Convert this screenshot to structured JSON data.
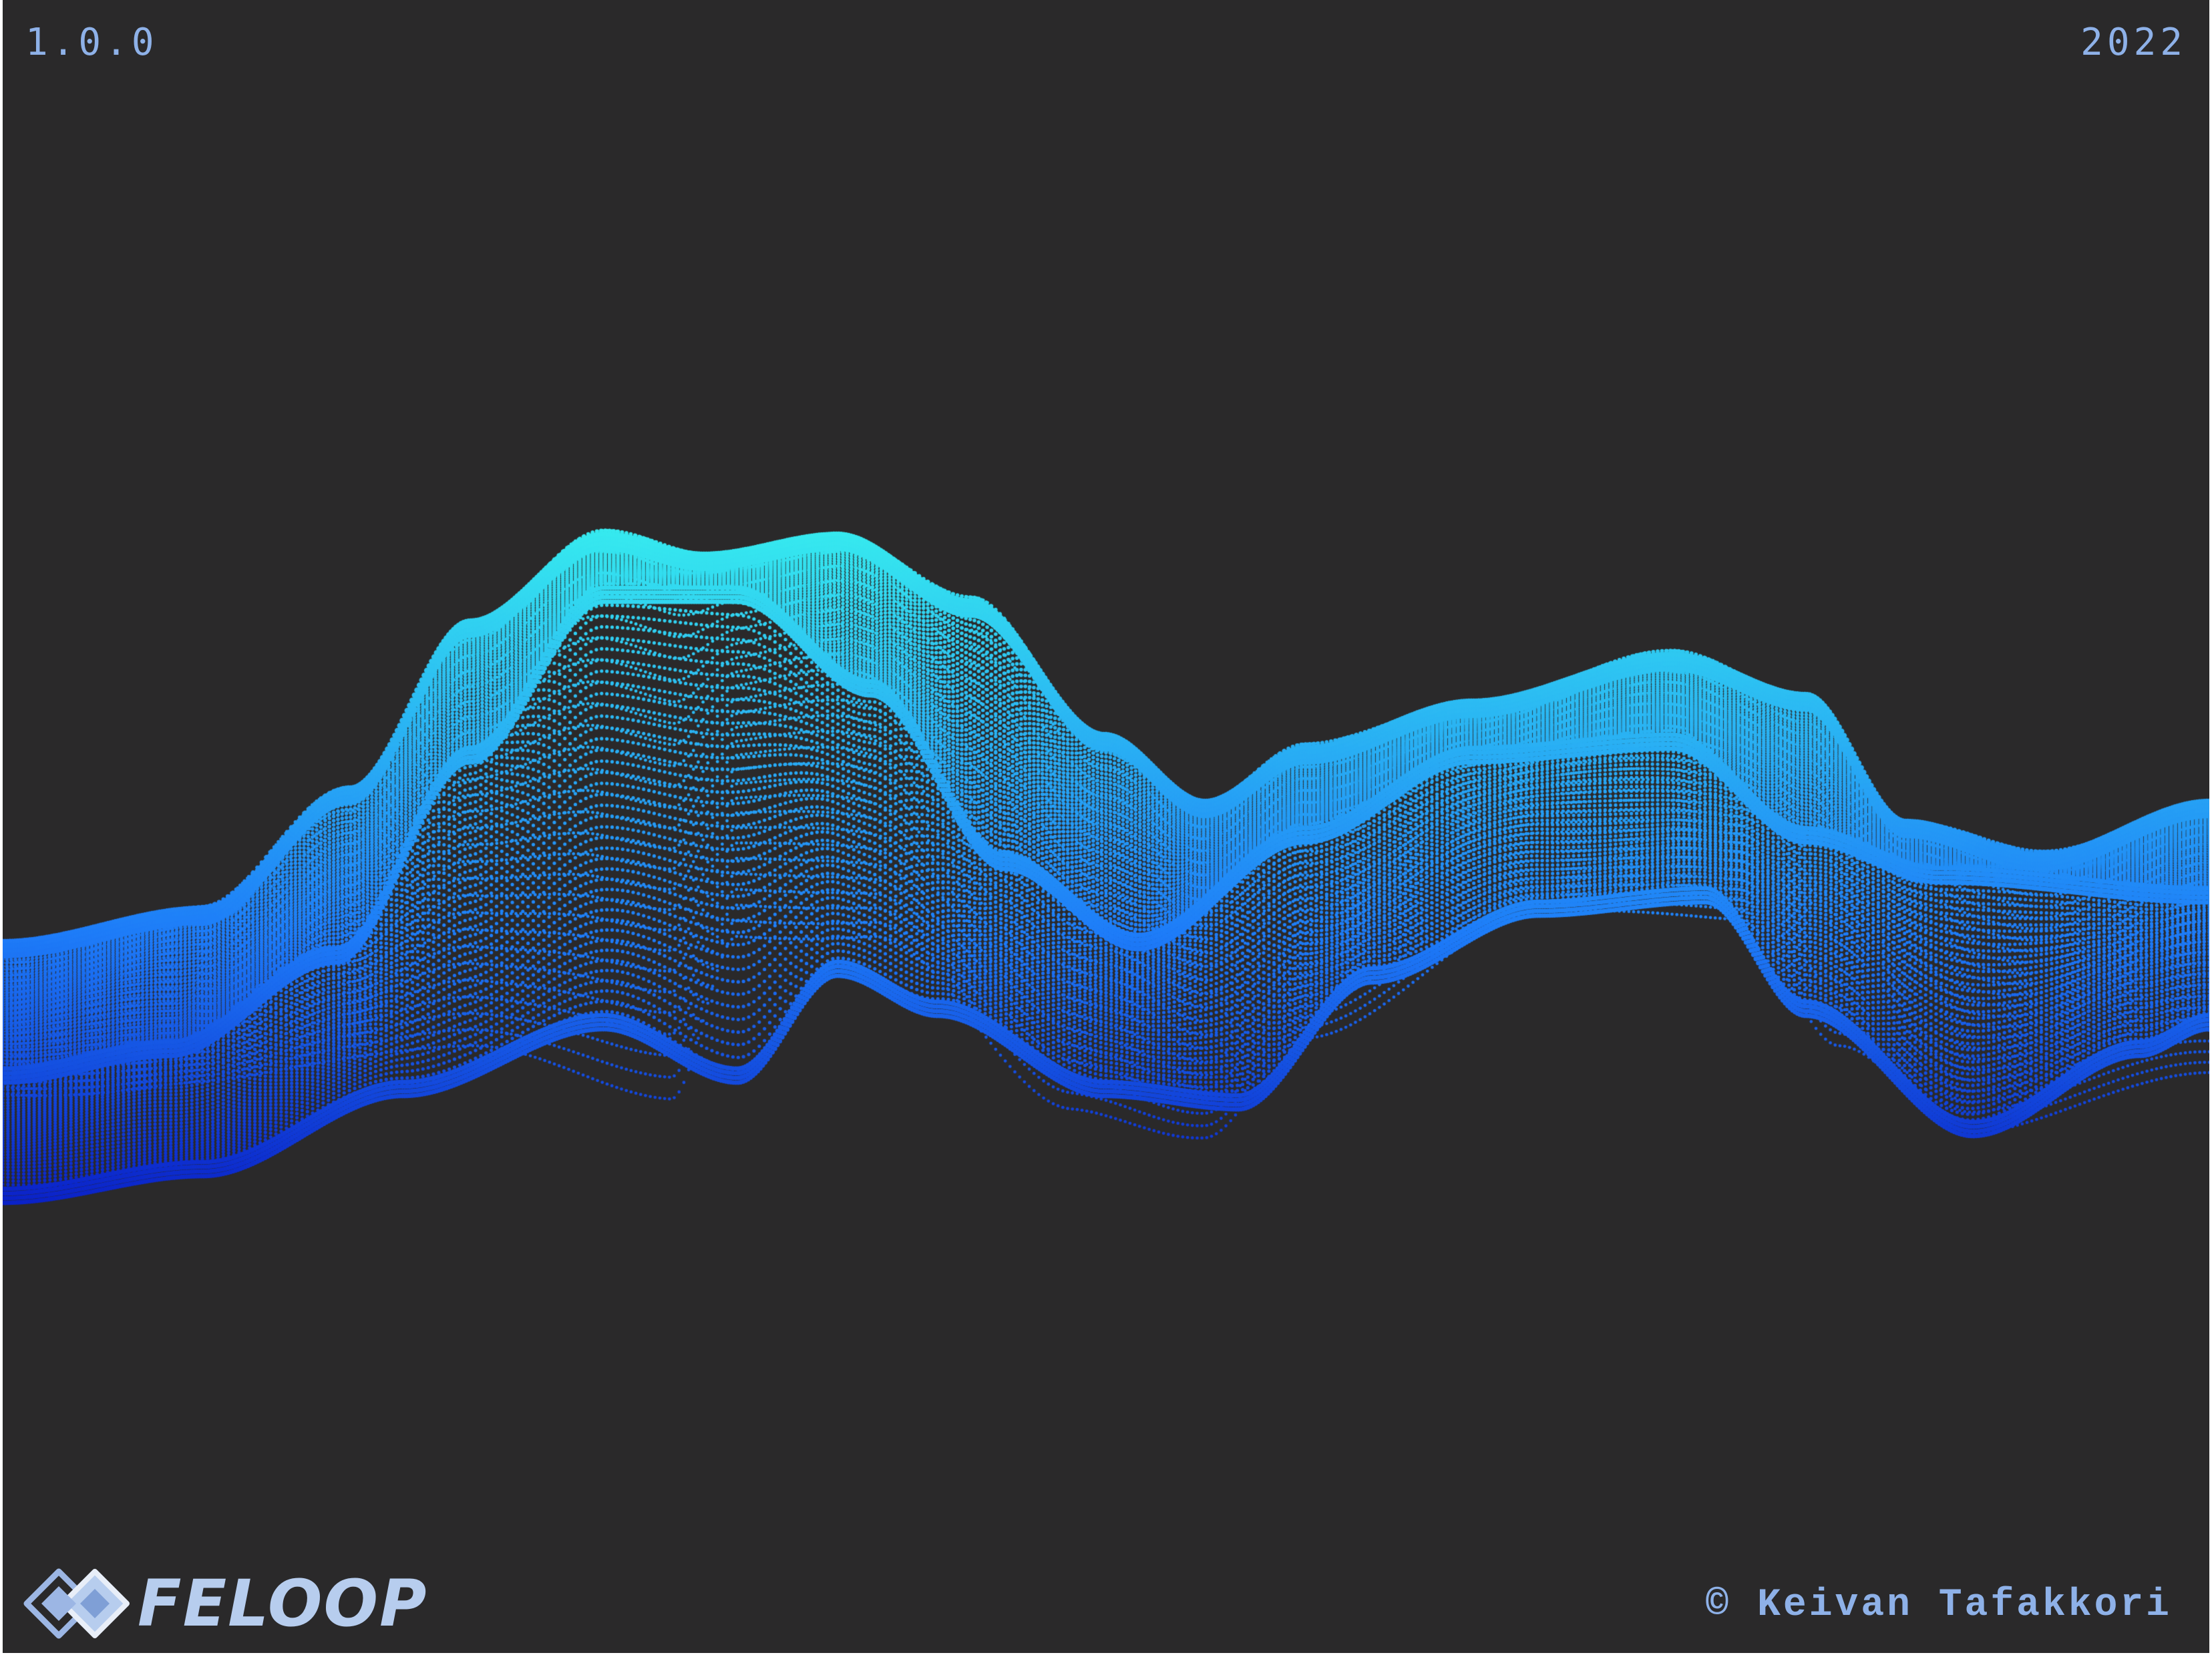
{
  "header": {
    "version": "1.0.0",
    "year": "2022"
  },
  "footer": {
    "logo_text": "FELOOP",
    "logo_icon": "feloop-diamond-logo-icon",
    "credit": "© Keivan Tafakkori"
  },
  "colors": {
    "background": "#2a292a",
    "text": "#8eb1e8",
    "wave_top": "#38f0ee",
    "wave_mid": "#1e7cf8",
    "wave_bottom": "#0b22c8"
  }
}
